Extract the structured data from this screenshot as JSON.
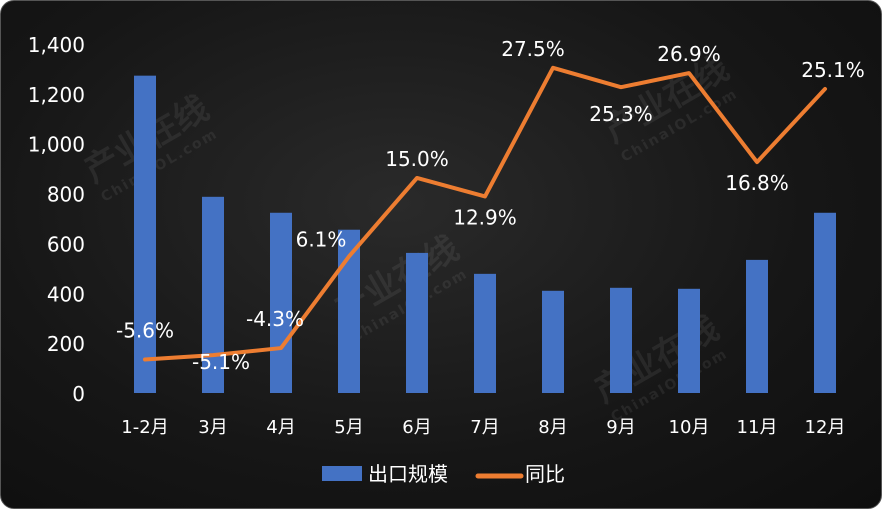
{
  "chart_data": {
    "type": "bar+line",
    "categories": [
      "1-2月",
      "3月",
      "4月",
      "5月",
      "6月",
      "7月",
      "8月",
      "9月",
      "10月",
      "11月",
      "12月"
    ],
    "series": [
      {
        "name": "出口规模",
        "type": "bar",
        "color": "#4472C4",
        "values": [
          1273,
          787,
          723,
          655,
          562,
          478,
          410,
          422,
          418,
          534,
          723
        ]
      },
      {
        "name": "同比",
        "type": "line",
        "color": "#ED7D31",
        "values": [
          -5.6,
          -5.1,
          -4.3,
          6.1,
          15.0,
          12.9,
          27.5,
          25.3,
          26.9,
          16.8,
          25.1
        ],
        "labels": [
          "-5.6%",
          "-5.1%",
          "-4.3%",
          "6.1%",
          "15.0%",
          "12.9%",
          "27.5%",
          "25.3%",
          "26.9%",
          "16.8%",
          "25.1%"
        ]
      }
    ],
    "ylim": [
      0,
      1400
    ],
    "y2lim": [
      -9.4,
      30.2
    ],
    "yticks": [
      "0",
      "200",
      "400",
      "600",
      "800",
      "1,000",
      "1,200",
      "1,400"
    ],
    "legend": "bottom",
    "grid": false
  },
  "watermark": {
    "cn": "产业在线",
    "en": "ChinaIOL.com"
  }
}
